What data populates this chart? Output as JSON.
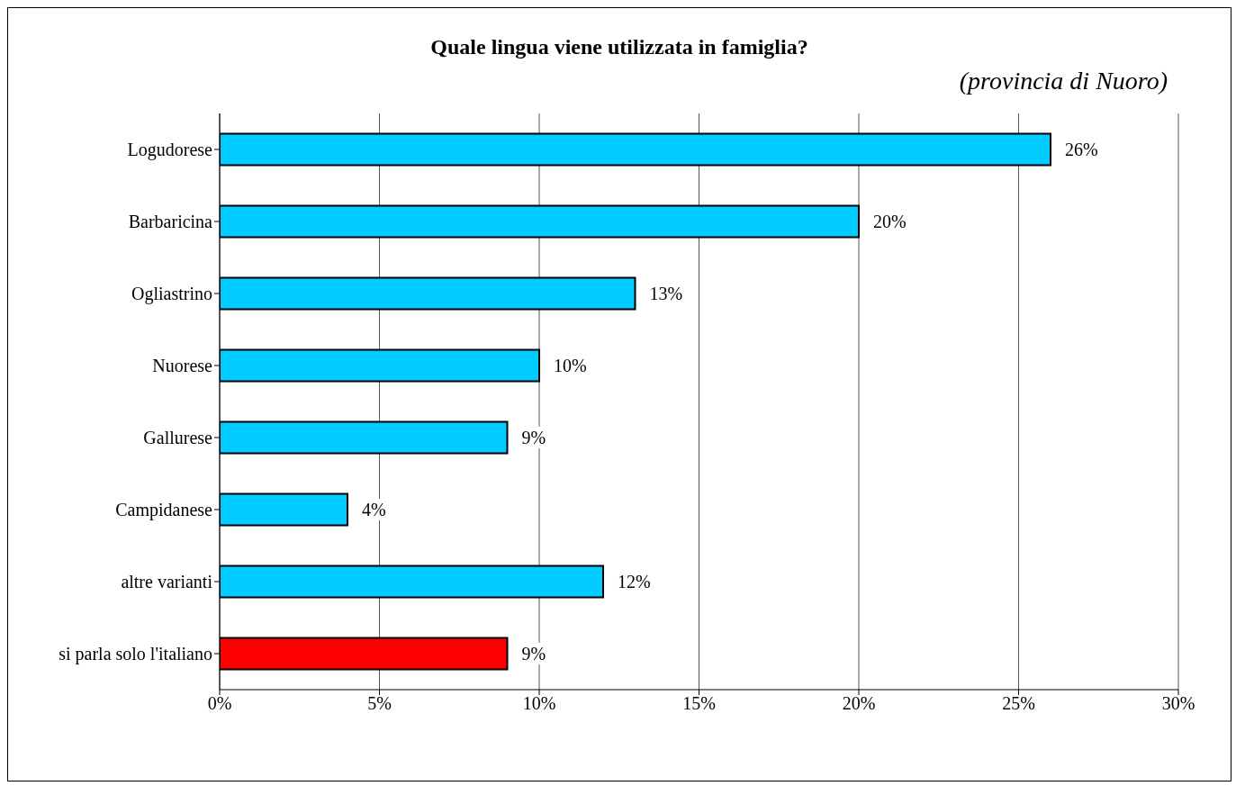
{
  "chart_data": {
    "type": "bar",
    "orientation": "horizontal",
    "title": "Quale lingua viene utilizzata in famiglia?",
    "subtitle": "(provincia di Nuoro)",
    "categories": [
      "Logudorese",
      "Barbaricina",
      "Ogliastrino",
      "Nuorese",
      "Gallurese",
      "Campidanese",
      "altre varianti",
      "si parla solo l'italiano"
    ],
    "values": [
      26,
      20,
      13,
      10,
      9,
      4,
      12,
      9
    ],
    "colors": [
      "#00ccff",
      "#00ccff",
      "#00ccff",
      "#00ccff",
      "#00ccff",
      "#00ccff",
      "#00ccff",
      "#ff0000"
    ],
    "value_labels": [
      "26%",
      "20%",
      "13%",
      "10%",
      "9%",
      "4%",
      "12%",
      "9%"
    ],
    "xlim": [
      0,
      30
    ],
    "xticks": [
      {
        "value": 0,
        "label": "0%"
      },
      {
        "value": 5,
        "label": "5%"
      },
      {
        "value": 10,
        "label": "10%"
      },
      {
        "value": 15,
        "label": "15%"
      },
      {
        "value": 20,
        "label": "20%"
      },
      {
        "value": 25,
        "label": "25%"
      },
      {
        "value": 30,
        "label": "30%"
      }
    ],
    "grid": "x"
  }
}
